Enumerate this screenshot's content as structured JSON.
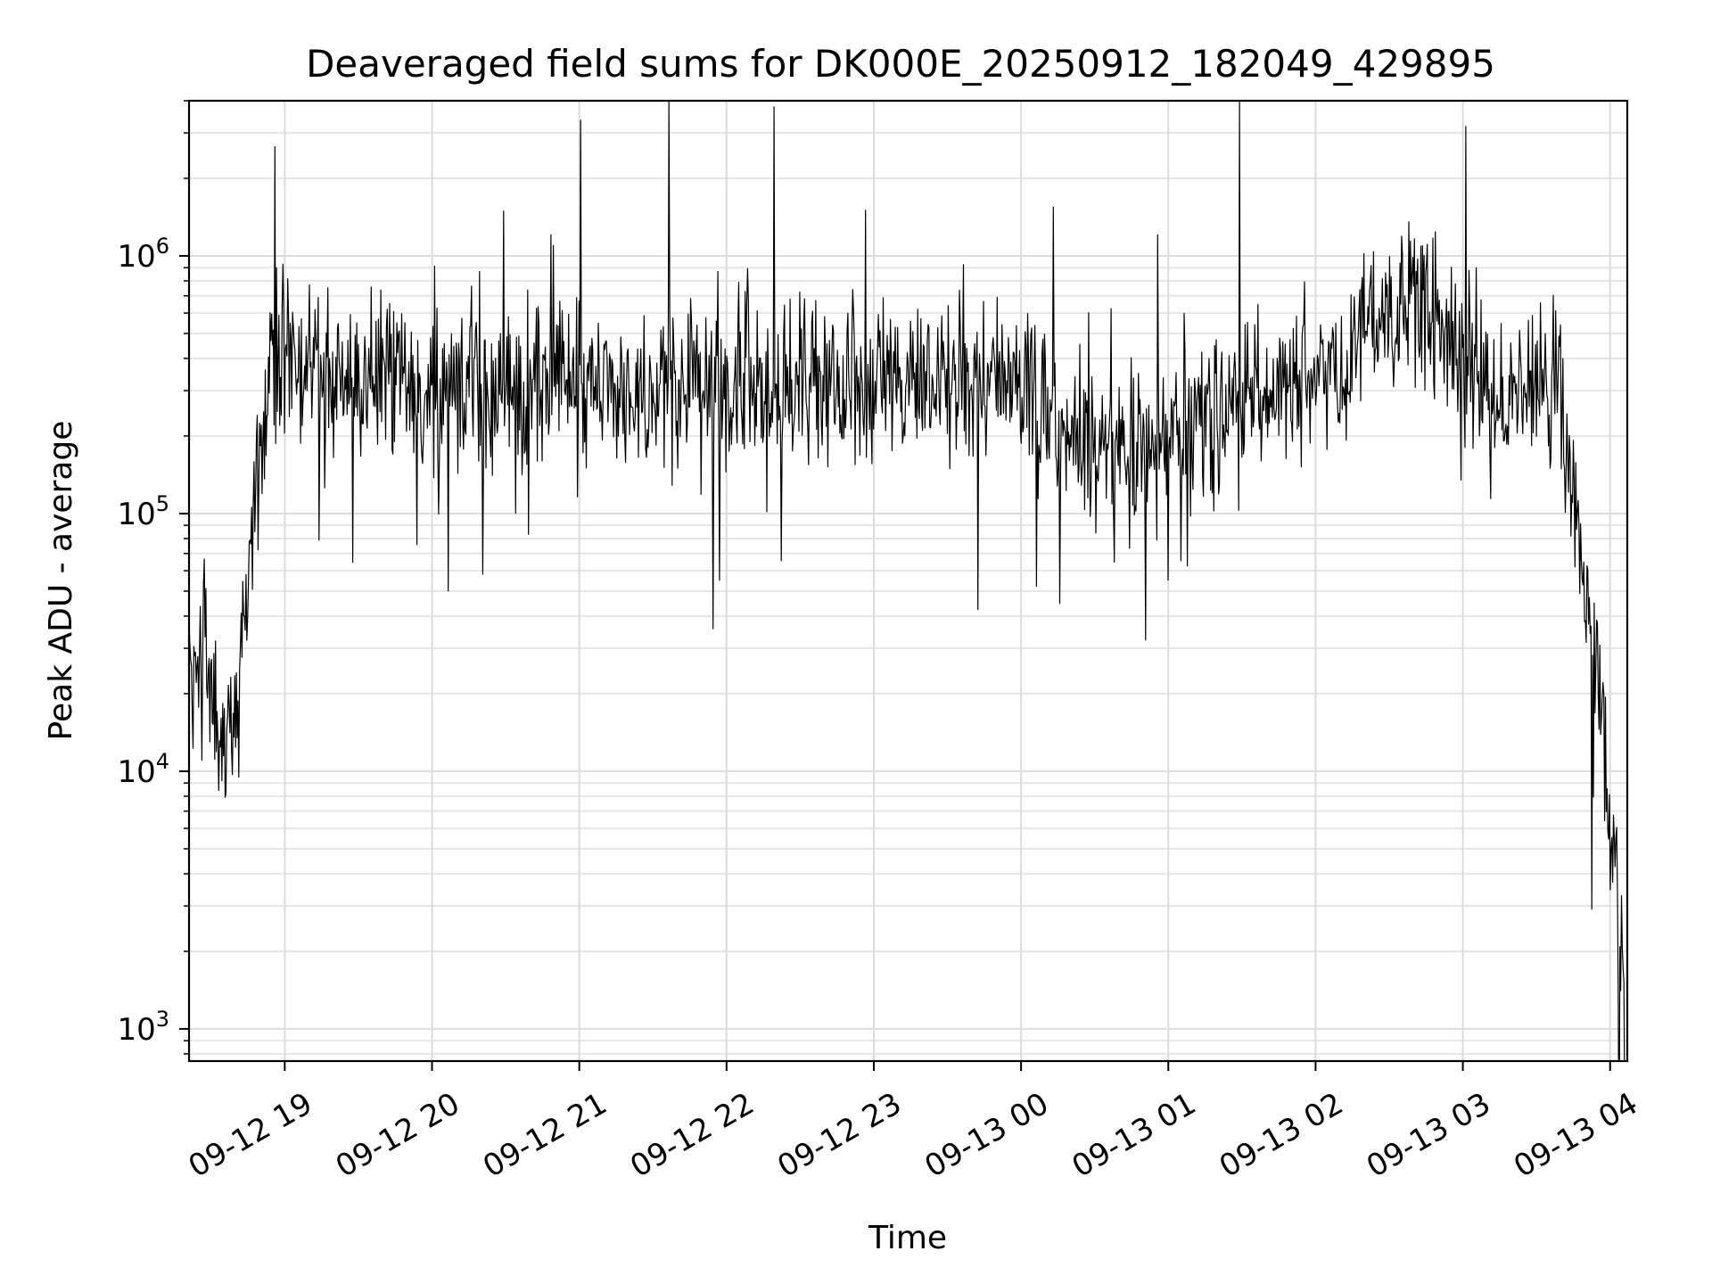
{
  "chart_data": {
    "type": "line",
    "title": "Deaveraged field sums for DK000E_20250912_182049_429895",
    "xlabel": "Time",
    "ylabel": "Peak ADU - average",
    "y_scale": "log",
    "ylim": [
      750,
      4000000
    ],
    "xlim": [
      "2025-09-12 18:21",
      "2025-09-13 04:07"
    ],
    "grid": true,
    "line_color": "#000000",
    "x_ticks": [
      {
        "label": "09-12 19",
        "value": "2025-09-12 19:00"
      },
      {
        "label": "09-12 20",
        "value": "2025-09-12 20:00"
      },
      {
        "label": "09-12 21",
        "value": "2025-09-12 21:00"
      },
      {
        "label": "09-12 22",
        "value": "2025-09-12 22:00"
      },
      {
        "label": "09-12 23",
        "value": "2025-09-12 23:00"
      },
      {
        "label": "09-13 00",
        "value": "2025-09-13 00:00"
      },
      {
        "label": "09-13 01",
        "value": "2025-09-13 01:00"
      },
      {
        "label": "09-13 02",
        "value": "2025-09-13 02:00"
      },
      {
        "label": "09-13 03",
        "value": "2025-09-13 03:00"
      },
      {
        "label": "09-13 04",
        "value": "2025-09-13 04:00"
      }
    ],
    "y_ticks": [
      {
        "base": "10",
        "exp": "3",
        "value": 1000
      },
      {
        "base": "10",
        "exp": "4",
        "value": 10000
      },
      {
        "base": "10",
        "exp": "5",
        "value": 100000
      },
      {
        "base": "10",
        "exp": "6",
        "value": 1000000
      }
    ],
    "series": [
      {
        "x": [
          "2025-09-12 18:21",
          "2025-09-12 18:24",
          "2025-09-12 18:27",
          "2025-09-12 18:30",
          "2025-09-12 18:33",
          "2025-09-12 18:36",
          "2025-09-12 18:39",
          "2025-09-12 18:42",
          "2025-09-12 18:45",
          "2025-09-12 18:48",
          "2025-09-12 18:51",
          "2025-09-12 18:54",
          "2025-09-12 18:57",
          "2025-09-12 19:00",
          "2025-09-12 19:05",
          "2025-09-12 19:10",
          "2025-09-12 19:15",
          "2025-09-12 19:30",
          "2025-09-12 19:45",
          "2025-09-12 20:00",
          "2025-09-12 20:15",
          "2025-09-12 20:30",
          "2025-09-12 20:45",
          "2025-09-12 21:00",
          "2025-09-12 21:15",
          "2025-09-12 21:30",
          "2025-09-12 21:45",
          "2025-09-12 22:00",
          "2025-09-12 22:15",
          "2025-09-12 22:30",
          "2025-09-12 22:45",
          "2025-09-12 23:00",
          "2025-09-12 23:15",
          "2025-09-12 23:30",
          "2025-09-12 23:45",
          "2025-09-13 00:00",
          "2025-09-13 00:15",
          "2025-09-13 00:30",
          "2025-09-13 00:45",
          "2025-09-13 01:00",
          "2025-09-13 01:15",
          "2025-09-13 01:30",
          "2025-09-13 01:45",
          "2025-09-13 02:00",
          "2025-09-13 02:15",
          "2025-09-13 02:30",
          "2025-09-13 02:45",
          "2025-09-13 03:00",
          "2025-09-13 03:15",
          "2025-09-13 03:30",
          "2025-09-13 03:40",
          "2025-09-13 03:45",
          "2025-09-13 03:50",
          "2025-09-13 03:55",
          "2025-09-13 04:00",
          "2025-09-13 04:03",
          "2025-09-13 04:06"
        ],
        "y": [
          25000,
          22000,
          25000,
          20000,
          15000,
          12000,
          16000,
          28000,
          55000,
          120000,
          200000,
          300000,
          380000,
          400000,
          420000,
          350000,
          330000,
          300000,
          340000,
          290000,
          300000,
          280000,
          320000,
          330000,
          340000,
          300000,
          320000,
          320000,
          330000,
          300000,
          330000,
          300000,
          310000,
          300000,
          320000,
          350000,
          200000,
          190000,
          180000,
          200000,
          250000,
          270000,
          300000,
          350000,
          420000,
          650000,
          600000,
          380000,
          300000,
          320000,
          330000,
          120000,
          40000,
          25000,
          7000,
          2500,
          1800
        ]
      }
    ]
  }
}
